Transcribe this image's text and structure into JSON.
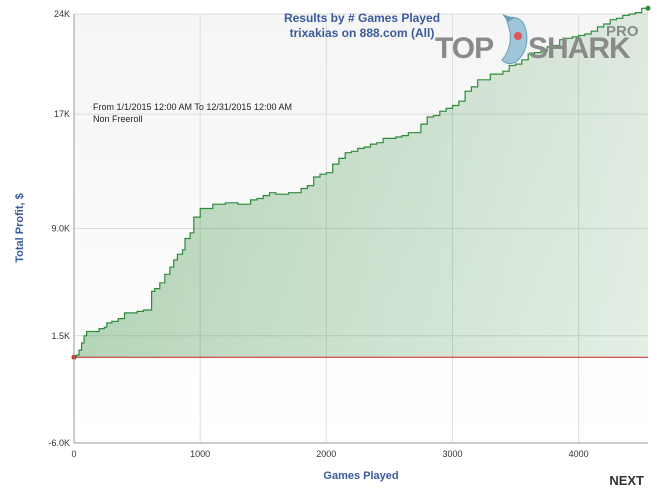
{
  "chart_data": {
    "type": "area",
    "title": "Results by # Games Played",
    "subtitle": "trixakias on 888.com (All)",
    "xlabel": "Games Played",
    "ylabel": "Total Profit, $",
    "xlim": [
      0,
      4550
    ],
    "ylim": [
      -6000,
      24000
    ],
    "x_ticks": [
      0,
      1000,
      2000,
      3000,
      4000
    ],
    "x_tick_labels": [
      "0",
      "1000",
      "2000",
      "3000",
      "4000"
    ],
    "y_ticks": [
      -6000,
      1500,
      9000,
      17000,
      24000
    ],
    "y_tick_labels": [
      "-6.0K",
      "1.5K",
      "9.0K",
      "17K",
      "24K"
    ],
    "reference_line": {
      "y": 0,
      "color": "#cc2222"
    },
    "annotations": [
      "From 1/1/2015 12:00 AM To 12/31/2015 12:00 AM",
      "Non Freeroll"
    ],
    "series": [
      {
        "color": "#2e8b3a",
        "fill": "#cfe8d2",
        "x": [
          0,
          20,
          40,
          60,
          80,
          100,
          150,
          200,
          240,
          260,
          300,
          350,
          400,
          450,
          500,
          550,
          600,
          615,
          640,
          680,
          720,
          760,
          790,
          820,
          860,
          880,
          920,
          950,
          1000,
          1100,
          1200,
          1300,
          1400,
          1450,
          1500,
          1550,
          1600,
          1700,
          1800,
          1850,
          1900,
          1950,
          2000,
          2050,
          2100,
          2150,
          2200,
          2250,
          2300,
          2350,
          2400,
          2450,
          2500,
          2550,
          2600,
          2650,
          2700,
          2750,
          2800,
          2850,
          2900,
          2950,
          3000,
          3050,
          3100,
          3150,
          3200,
          3300,
          3400,
          3450,
          3500,
          3550,
          3600,
          3650,
          3700,
          3750,
          3800,
          3850,
          3900,
          3950,
          4000,
          4050,
          4100,
          4150,
          4200,
          4250,
          4300,
          4350,
          4400,
          4450,
          4500,
          4550
        ],
        "y": [
          0,
          150,
          500,
          1000,
          1500,
          1800,
          1800,
          2000,
          2100,
          2400,
          2500,
          2700,
          3100,
          3100,
          3200,
          3300,
          3300,
          4600,
          4800,
          5200,
          5800,
          6300,
          6800,
          7200,
          7500,
          8300,
          8700,
          9800,
          10400,
          10700,
          10800,
          10700,
          11000,
          11100,
          11300,
          11500,
          11400,
          11500,
          11800,
          12000,
          12600,
          12800,
          12900,
          13500,
          13900,
          14300,
          14400,
          14600,
          14700,
          14900,
          15000,
          15300,
          15300,
          15400,
          15500,
          15700,
          15700,
          16300,
          16800,
          16900,
          17200,
          17400,
          17600,
          17900,
          18600,
          18900,
          19400,
          19800,
          20000,
          20400,
          20500,
          20800,
          21200,
          21300,
          21400,
          21700,
          21800,
          22200,
          22300,
          22400,
          22500,
          22600,
          22800,
          23100,
          23300,
          23600,
          23700,
          23900,
          24000,
          24100,
          24400,
          24400
        ]
      }
    ],
    "grid": true,
    "legend": "none"
  },
  "logo": {
    "top": "TOP",
    "shark": "SHARK",
    "pro": "PRO"
  },
  "nav": {
    "next_label": "NEXT"
  }
}
